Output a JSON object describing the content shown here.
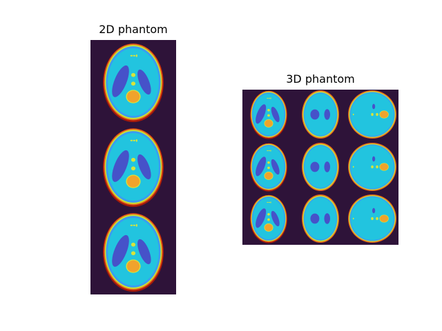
{
  "figure": {
    "panels": [
      {
        "id": "panel_2d",
        "title": "2D phantom",
        "layout": "3 rows x 1 column"
      },
      {
        "id": "panel_3d",
        "title": "3D phantom",
        "layout": "3 rows x 3 columns"
      }
    ],
    "colors": {
      "background": "#2e1339",
      "outer_ring_red": "#a4190b",
      "outer_ring_orange": "#e8641a",
      "skull_yellow": "#c9e234",
      "cortex_blue": "#3a9cf2",
      "tissue_cyan": "#22c4df",
      "ventricle_indigo": "#4652c9",
      "lesion_orange": "#f0a32c",
      "small_dot_yellow": "#d8e43a"
    }
  }
}
